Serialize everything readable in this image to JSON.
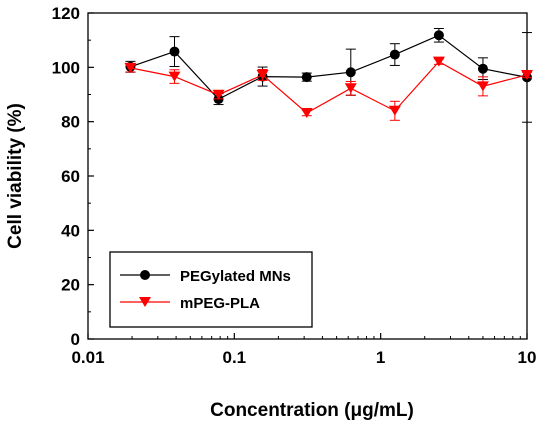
{
  "chart_data": {
    "type": "line",
    "xscale": "log",
    "xlabel": "Concentration (μg/mL)",
    "ylabel": "Cell viability (%)",
    "xlim": [
      0.01,
      10
    ],
    "ylim": [
      0,
      120
    ],
    "xticks": [
      0.01,
      0.1,
      1,
      10
    ],
    "xtick_labels": [
      "0.01",
      "0.1",
      "1",
      "10"
    ],
    "yticks": [
      0,
      20,
      40,
      60,
      80,
      100,
      120
    ],
    "ytick_labels": [
      "0",
      "20",
      "40",
      "60",
      "80",
      "100",
      "120"
    ],
    "grid": false,
    "legend_position": "lower-left",
    "series": [
      {
        "name": "PEGylated MNs",
        "color": "#000000",
        "marker": "circle",
        "points": [
          {
            "x": 0.0195,
            "y": 100.2,
            "err": 2.0
          },
          {
            "x": 0.039,
            "y": 105.8,
            "err": 5.5
          },
          {
            "x": 0.078,
            "y": 88.3,
            "err": 2.0
          },
          {
            "x": 0.156,
            "y": 96.6,
            "err": 3.5
          },
          {
            "x": 0.3125,
            "y": 96.4,
            "err": 1.5
          },
          {
            "x": 0.625,
            "y": 98.2,
            "err": 8.5
          },
          {
            "x": 1.25,
            "y": 104.7,
            "err": 4.0
          },
          {
            "x": 2.5,
            "y": 111.8,
            "err": 2.5
          },
          {
            "x": 5,
            "y": 99.5,
            "err": 4.0
          },
          {
            "x": 10,
            "y": 96.3,
            "err": 16.5
          }
        ]
      },
      {
        "name": "mPEG-PLA",
        "color": "#ff0000",
        "marker": "triangle-down",
        "points": [
          {
            "x": 0.0195,
            "y": 99.8,
            "err": 1.5
          },
          {
            "x": 0.039,
            "y": 96.6,
            "err": 2.5
          },
          {
            "x": 0.078,
            "y": 89.9,
            "err": 1.5
          },
          {
            "x": 0.156,
            "y": 97.2,
            "err": 2.0
          },
          {
            "x": 0.3125,
            "y": 83.2,
            "err": 1.0
          },
          {
            "x": 0.625,
            "y": 92.3,
            "err": 2.5
          },
          {
            "x": 1.25,
            "y": 84.0,
            "err": 3.5
          },
          {
            "x": 2.5,
            "y": 102.1,
            "err": 1.0
          },
          {
            "x": 5,
            "y": 93.0,
            "err": 3.5
          },
          {
            "x": 10,
            "y": 97.2,
            "err": 1.0
          }
        ]
      }
    ]
  }
}
